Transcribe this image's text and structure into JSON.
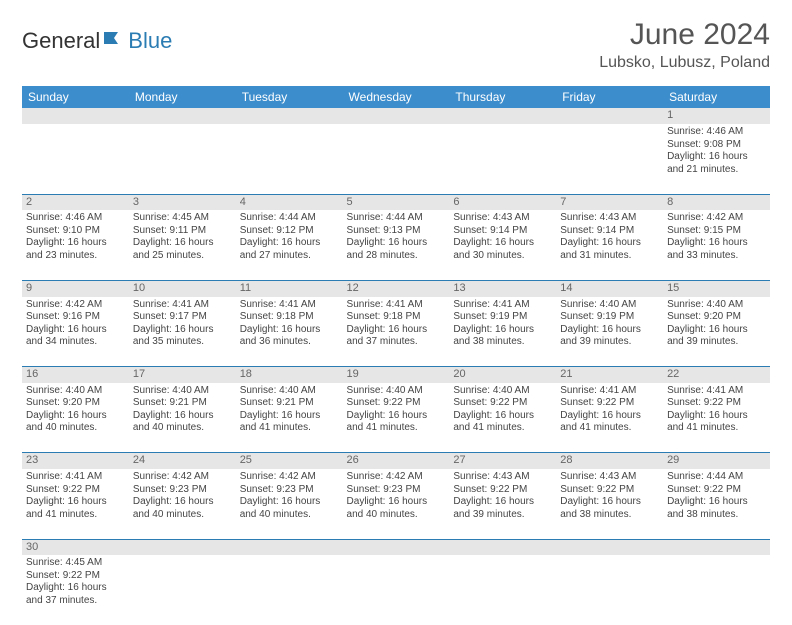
{
  "brand": {
    "part1": "General",
    "part2": "Blue"
  },
  "title": "June 2024",
  "location": "Lubsko, Lubusz, Poland",
  "colors": {
    "header_bg": "#3c8dcc",
    "header_text": "#ffffff",
    "daynum_bg": "#e6e6e6",
    "rule": "#2b7cb3",
    "logo_blue": "#2b7cb3"
  },
  "weekdays": [
    "Sunday",
    "Monday",
    "Tuesday",
    "Wednesday",
    "Thursday",
    "Friday",
    "Saturday"
  ],
  "weeks": [
    {
      "nums": [
        "",
        "",
        "",
        "",
        "",
        "",
        "1"
      ],
      "cells": [
        null,
        null,
        null,
        null,
        null,
        null,
        {
          "sunrise": "4:46 AM",
          "sunset": "9:08 PM",
          "daylight": "16 hours and 21 minutes."
        }
      ]
    },
    {
      "nums": [
        "2",
        "3",
        "4",
        "5",
        "6",
        "7",
        "8"
      ],
      "cells": [
        {
          "sunrise": "4:46 AM",
          "sunset": "9:10 PM",
          "daylight": "16 hours and 23 minutes."
        },
        {
          "sunrise": "4:45 AM",
          "sunset": "9:11 PM",
          "daylight": "16 hours and 25 minutes."
        },
        {
          "sunrise": "4:44 AM",
          "sunset": "9:12 PM",
          "daylight": "16 hours and 27 minutes."
        },
        {
          "sunrise": "4:44 AM",
          "sunset": "9:13 PM",
          "daylight": "16 hours and 28 minutes."
        },
        {
          "sunrise": "4:43 AM",
          "sunset": "9:14 PM",
          "daylight": "16 hours and 30 minutes."
        },
        {
          "sunrise": "4:43 AM",
          "sunset": "9:14 PM",
          "daylight": "16 hours and 31 minutes."
        },
        {
          "sunrise": "4:42 AM",
          "sunset": "9:15 PM",
          "daylight": "16 hours and 33 minutes."
        }
      ]
    },
    {
      "nums": [
        "9",
        "10",
        "11",
        "12",
        "13",
        "14",
        "15"
      ],
      "cells": [
        {
          "sunrise": "4:42 AM",
          "sunset": "9:16 PM",
          "daylight": "16 hours and 34 minutes."
        },
        {
          "sunrise": "4:41 AM",
          "sunset": "9:17 PM",
          "daylight": "16 hours and 35 minutes."
        },
        {
          "sunrise": "4:41 AM",
          "sunset": "9:18 PM",
          "daylight": "16 hours and 36 minutes."
        },
        {
          "sunrise": "4:41 AM",
          "sunset": "9:18 PM",
          "daylight": "16 hours and 37 minutes."
        },
        {
          "sunrise": "4:41 AM",
          "sunset": "9:19 PM",
          "daylight": "16 hours and 38 minutes."
        },
        {
          "sunrise": "4:40 AM",
          "sunset": "9:19 PM",
          "daylight": "16 hours and 39 minutes."
        },
        {
          "sunrise": "4:40 AM",
          "sunset": "9:20 PM",
          "daylight": "16 hours and 39 minutes."
        }
      ]
    },
    {
      "nums": [
        "16",
        "17",
        "18",
        "19",
        "20",
        "21",
        "22"
      ],
      "cells": [
        {
          "sunrise": "4:40 AM",
          "sunset": "9:20 PM",
          "daylight": "16 hours and 40 minutes."
        },
        {
          "sunrise": "4:40 AM",
          "sunset": "9:21 PM",
          "daylight": "16 hours and 40 minutes."
        },
        {
          "sunrise": "4:40 AM",
          "sunset": "9:21 PM",
          "daylight": "16 hours and 41 minutes."
        },
        {
          "sunrise": "4:40 AM",
          "sunset": "9:22 PM",
          "daylight": "16 hours and 41 minutes."
        },
        {
          "sunrise": "4:40 AM",
          "sunset": "9:22 PM",
          "daylight": "16 hours and 41 minutes."
        },
        {
          "sunrise": "4:41 AM",
          "sunset": "9:22 PM",
          "daylight": "16 hours and 41 minutes."
        },
        {
          "sunrise": "4:41 AM",
          "sunset": "9:22 PM",
          "daylight": "16 hours and 41 minutes."
        }
      ]
    },
    {
      "nums": [
        "23",
        "24",
        "25",
        "26",
        "27",
        "28",
        "29"
      ],
      "cells": [
        {
          "sunrise": "4:41 AM",
          "sunset": "9:22 PM",
          "daylight": "16 hours and 41 minutes."
        },
        {
          "sunrise": "4:42 AM",
          "sunset": "9:23 PM",
          "daylight": "16 hours and 40 minutes."
        },
        {
          "sunrise": "4:42 AM",
          "sunset": "9:23 PM",
          "daylight": "16 hours and 40 minutes."
        },
        {
          "sunrise": "4:42 AM",
          "sunset": "9:23 PM",
          "daylight": "16 hours and 40 minutes."
        },
        {
          "sunrise": "4:43 AM",
          "sunset": "9:22 PM",
          "daylight": "16 hours and 39 minutes."
        },
        {
          "sunrise": "4:43 AM",
          "sunset": "9:22 PM",
          "daylight": "16 hours and 38 minutes."
        },
        {
          "sunrise": "4:44 AM",
          "sunset": "9:22 PM",
          "daylight": "16 hours and 38 minutes."
        }
      ]
    },
    {
      "nums": [
        "30",
        "",
        "",
        "",
        "",
        "",
        ""
      ],
      "cells": [
        {
          "sunrise": "4:45 AM",
          "sunset": "9:22 PM",
          "daylight": "16 hours and 37 minutes."
        },
        null,
        null,
        null,
        null,
        null,
        null
      ]
    }
  ],
  "labels": {
    "sunrise": "Sunrise: ",
    "sunset": "Sunset: ",
    "daylight": "Daylight: "
  }
}
